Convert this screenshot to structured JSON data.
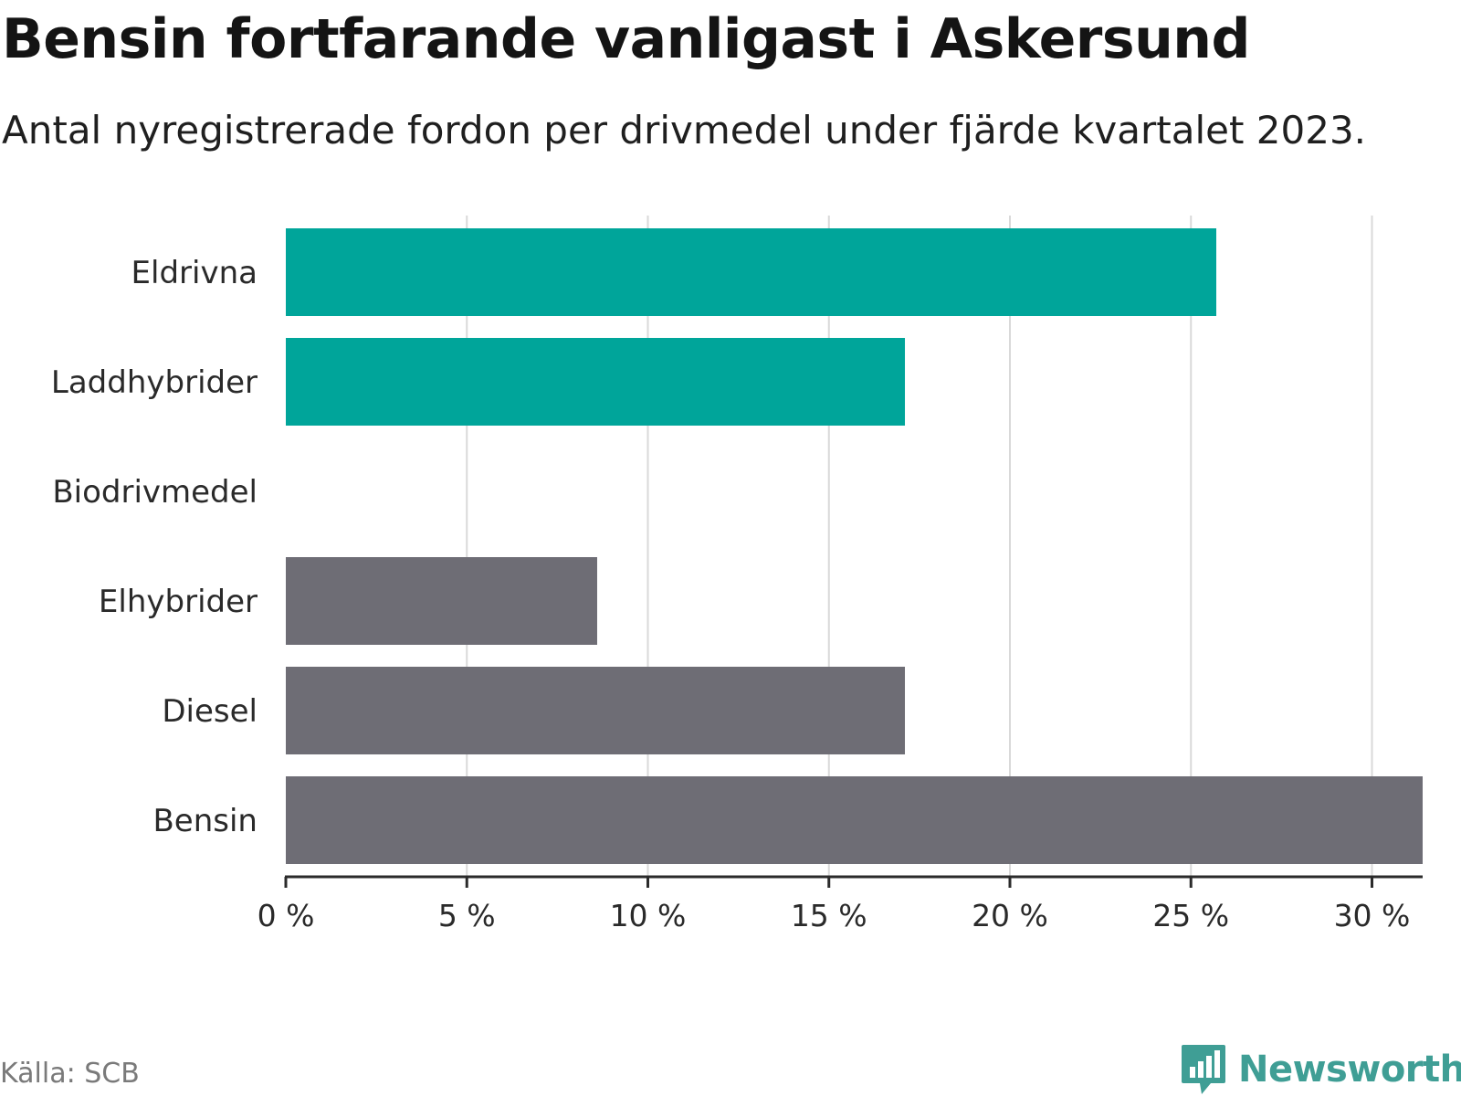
{
  "header": {
    "title": "Bensin fortfarande vanligast i Askersund",
    "subtitle": "Antal nyregistrerade fordon per drivmedel under fjärde kvartalet 2023."
  },
  "footer": {
    "source": "Källa: SCB",
    "brand": "Newsworthy",
    "brand_icon": "bar-chart-speech-bubble-icon"
  },
  "colors": {
    "green": "#00a59a",
    "gray": "#6e6d75",
    "grid": "#d9d9d9",
    "axis": "#2b2b2b",
    "brand": "#3f9e95"
  },
  "chart_data": {
    "type": "bar",
    "orientation": "horizontal",
    "categories": [
      "Eldrivna",
      "Laddhybrider",
      "Biodrivmedel",
      "Elhybrider",
      "Diesel",
      "Bensin"
    ],
    "values": [
      25.7,
      17.1,
      0,
      8.6,
      17.1,
      31.4
    ],
    "bar_colors": [
      "green",
      "green",
      "none",
      "gray",
      "gray",
      "gray"
    ],
    "xlim": [
      0,
      31.4
    ],
    "xticks": [
      0,
      5,
      10,
      15,
      20,
      25,
      30
    ],
    "xtick_labels": [
      "0 %",
      "5 %",
      "10 %",
      "15 %",
      "20 %",
      "25 %",
      "30 %"
    ],
    "grid": "vertical",
    "legend": "none"
  }
}
